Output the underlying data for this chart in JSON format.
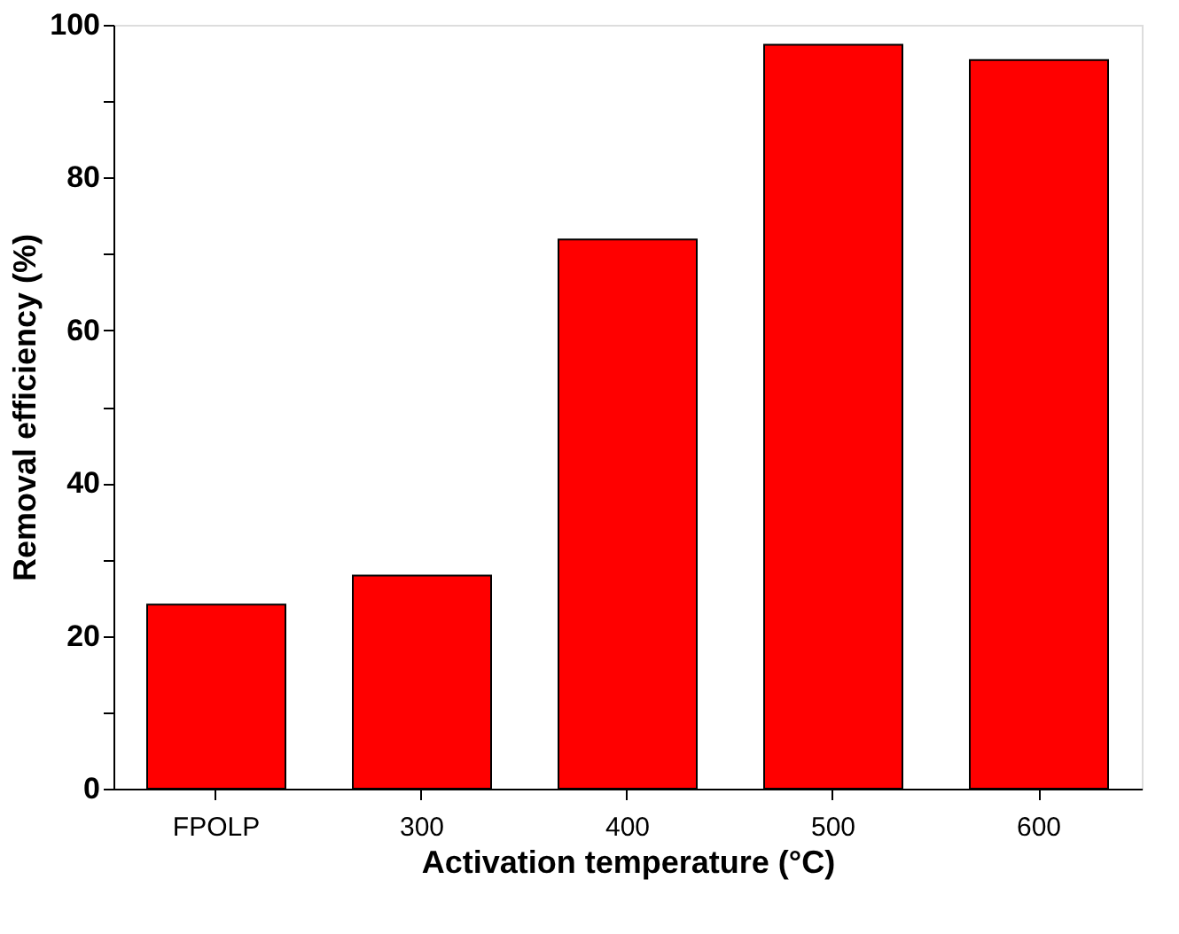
{
  "chart_data": {
    "type": "bar",
    "xlabel": "Activation temperature (°C)",
    "ylabel": "Removal efficiency (%)",
    "categories": [
      "FPOLP",
      "300",
      "400",
      "500",
      "600"
    ],
    "values": [
      24.1,
      27.9,
      71.9,
      97.4,
      95.4
    ],
    "color": "#ff0000",
    "ylim": [
      0,
      100
    ],
    "yticks": [
      0,
      {
        "value": 10,
        "label": null
      },
      20,
      {
        "value": 30,
        "label": null
      },
      40,
      {
        "value": 50,
        "label": null
      },
      60,
      {
        "value": 70,
        "label": null
      },
      80,
      {
        "value": 90,
        "label": null
      },
      100
    ],
    "grid": false
  }
}
